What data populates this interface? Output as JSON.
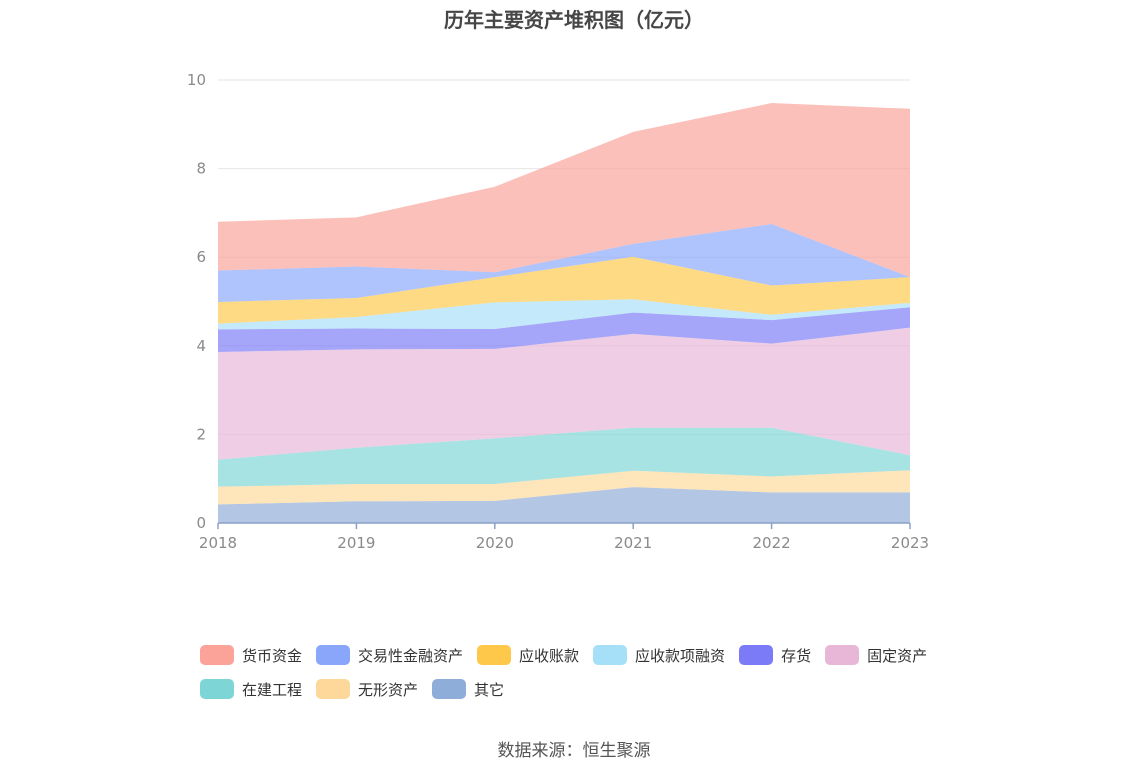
{
  "chart_data": {
    "type": "area",
    "stacked": true,
    "title": "历年主要资产堆积图（亿元）",
    "x": [
      "2018",
      "2019",
      "2020",
      "2021",
      "2022",
      "2023"
    ],
    "ylim": [
      0,
      10
    ],
    "yticks": [
      "0",
      "2",
      "4",
      "6",
      "8",
      "10"
    ],
    "grid": true,
    "legend_position": "bottom",
    "source": "数据来源：恒生聚源",
    "series": [
      {
        "name": "其它",
        "color": "#8fadd9",
        "values": [
          0.42,
          0.49,
          0.5,
          0.81,
          0.69,
          0.69
        ]
      },
      {
        "name": "无形资产",
        "color": "#fdd89a",
        "values": [
          0.4,
          0.39,
          0.38,
          0.37,
          0.36,
          0.5
        ]
      },
      {
        "name": "在建工程",
        "color": "#7dd6d5",
        "values": [
          0.61,
          0.82,
          1.03,
          0.97,
          1.1,
          0.34
        ]
      },
      {
        "name": "固定资产",
        "color": "#e8b7d8",
        "values": [
          2.43,
          2.22,
          2.02,
          2.12,
          1.9,
          2.88
        ]
      },
      {
        "name": "存货",
        "color": "#7b7bf7",
        "values": [
          0.51,
          0.47,
          0.45,
          0.48,
          0.53,
          0.46
        ]
      },
      {
        "name": "应收款项融资",
        "color": "#a6dff8",
        "values": [
          0.13,
          0.26,
          0.6,
          0.3,
          0.12,
          0.1
        ]
      },
      {
        "name": "应收账款",
        "color": "#fec84a",
        "values": [
          0.49,
          0.43,
          0.57,
          0.96,
          0.66,
          0.58
        ]
      },
      {
        "name": "交易性金融资产",
        "color": "#89a6fb",
        "values": [
          0.71,
          0.71,
          0.11,
          0.29,
          1.39,
          0.0
        ]
      },
      {
        "name": "货币资金",
        "color": "#fba299",
        "values": [
          1.1,
          1.11,
          1.93,
          2.53,
          2.73,
          3.8
        ]
      }
    ]
  },
  "legend": {
    "row1": [
      "货币资金",
      "交易性金融资产",
      "应收账款",
      "应收款项融资",
      "存货",
      "固定资产"
    ],
    "row2": [
      "在建工程",
      "无形资产",
      "其它"
    ]
  }
}
